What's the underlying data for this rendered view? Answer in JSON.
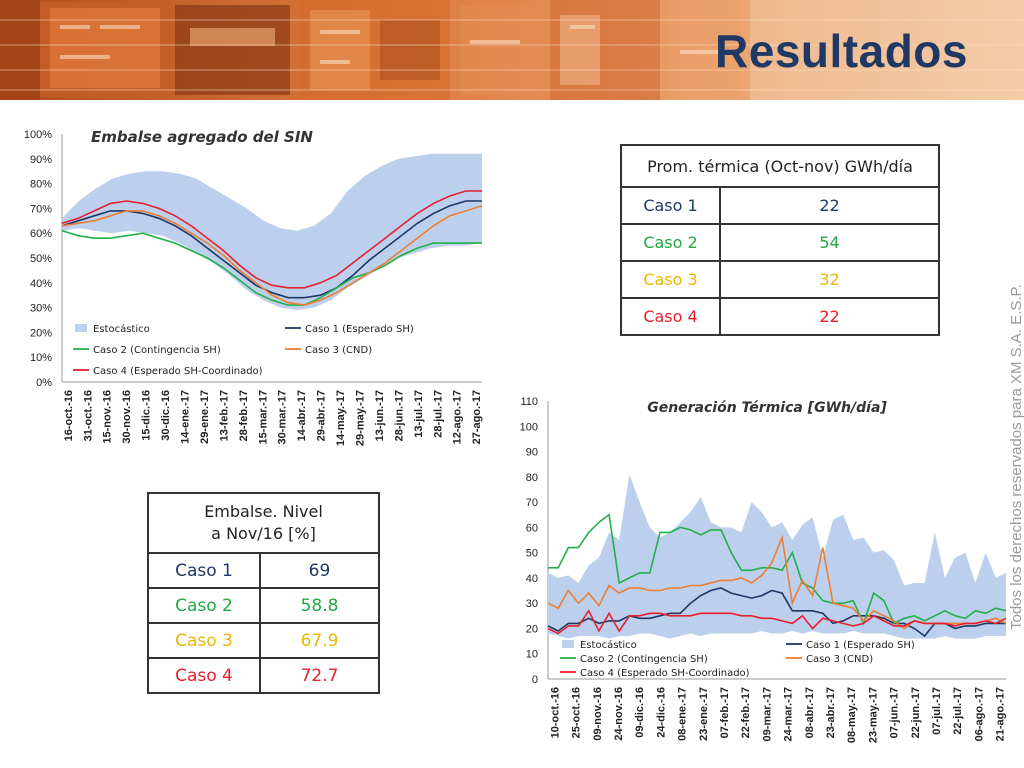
{
  "slide_title": "Resultados",
  "copyright": "Todos los derechos reservados para XM S.A. E.S.P.",
  "colors": {
    "stochastic_band": "#bcd0ee",
    "caso1": "#1f3864",
    "caso2": "#22b04a",
    "caso3": "#ed7d31",
    "caso4": "#e8202b",
    "caso3_text": "#e8b800"
  },
  "thermal_table": {
    "header": "Prom. térmica (Oct-nov) GWh/día",
    "rows": [
      {
        "label": "Caso 1",
        "value": "22"
      },
      {
        "label": "Caso 2",
        "value": "54"
      },
      {
        "label": "Caso 3",
        "value": "32"
      },
      {
        "label": "Caso 4",
        "value": "22"
      }
    ]
  },
  "level_table": {
    "header_line1": "Embalse. Nivel",
    "header_line2": "a Nov/16 [%]",
    "rows": [
      {
        "label": "Caso 1",
        "value": "69"
      },
      {
        "label": "Caso 2",
        "value": "58.8"
      },
      {
        "label": "Caso 3",
        "value": "67.9"
      },
      {
        "label": "Caso 4",
        "value": "72.7"
      }
    ]
  },
  "chart_data": [
    {
      "type": "area",
      "title": "Embalse agregado del SIN",
      "ylim": [
        0,
        100
      ],
      "yticks": [
        "0%",
        "10%",
        "20%",
        "30%",
        "40%",
        "50%",
        "60%",
        "70%",
        "80%",
        "90%",
        "100%"
      ],
      "x_tick_labels": [
        "16-oct.-16",
        "31-oct.-16",
        "15-nov.-16",
        "30-nov.-16",
        "15-dic.-16",
        "30-dic.-16",
        "14-ene.-17",
        "29-ene.-17",
        "13-feb.-17",
        "28-feb.-17",
        "15-mar.-17",
        "30-mar.-17",
        "14-abr.-17",
        "29-abr.-17",
        "14-may.-17",
        "29-may.-17",
        "13-jun.-17",
        "28-jun.-17",
        "13-jul.-17",
        "28-jul.-17",
        "12-ago.-17",
        "27-ago.-17"
      ],
      "legend": [
        "Estocástico",
        "Caso 1 (Esperado SH)",
        "Caso 2 (Contingencia SH)",
        "Caso 3 (CND)",
        "Caso 4 (Esperado SH-Coordinado)"
      ],
      "band": {
        "name": "Estocástico",
        "upper": [
          66,
          73,
          78,
          82,
          84,
          85,
          85,
          84,
          82,
          78,
          74,
          70,
          65,
          62,
          61,
          63,
          68,
          77,
          83,
          87,
          90,
          91,
          92,
          92,
          92,
          92
        ],
        "lower": [
          61,
          62,
          61,
          60,
          61,
          60,
          59,
          56,
          52,
          48,
          43,
          37,
          33,
          30,
          29,
          30,
          33,
          38,
          42,
          46,
          50,
          52,
          54,
          55,
          55,
          56
        ]
      },
      "series": [
        {
          "name": "Caso 1 (Esperado SH)",
          "values": [
            63,
            65,
            67,
            69,
            69,
            68,
            66,
            63,
            59,
            54,
            49,
            44,
            39,
            36,
            34,
            34,
            35,
            38,
            43,
            49,
            54,
            59,
            64,
            68,
            71,
            73,
            73
          ]
        },
        {
          "name": "Caso 2 (Contingencia SH)",
          "values": [
            61,
            59,
            58,
            58,
            59,
            60,
            58,
            56,
            53,
            50,
            46,
            41,
            36,
            33,
            31,
            31,
            34,
            38,
            42,
            44,
            47,
            51,
            54,
            56,
            56,
            56,
            56
          ]
        },
        {
          "name": "Caso 3 (CND)",
          "values": [
            63,
            64,
            65,
            67,
            69,
            69,
            67,
            64,
            60,
            56,
            51,
            45,
            40,
            35,
            32,
            31,
            33,
            36,
            40,
            44,
            48,
            53,
            58,
            63,
            67,
            69,
            71
          ]
        },
        {
          "name": "Caso 4 (Esperado SH-Coordinado)",
          "values": [
            64,
            66,
            69,
            72,
            73,
            72,
            70,
            67,
            63,
            58,
            53,
            47,
            42,
            39,
            38,
            38,
            40,
            43,
            48,
            53,
            58,
            63,
            68,
            72,
            75,
            77,
            77
          ]
        }
      ]
    },
    {
      "type": "area",
      "title": "Generación Térmica [GWh/día]",
      "ylim": [
        0,
        110
      ],
      "yticks": [
        "0",
        "10",
        "20",
        "30",
        "40",
        "50",
        "60",
        "70",
        "80",
        "90",
        "100",
        "110"
      ],
      "x_tick_labels": [
        "10-oct.-16",
        "25-oct.-16",
        "09-nov.-16",
        "24-nov.-16",
        "09-dic.-16",
        "24-dic.-16",
        "08-ene.-17",
        "23-ene.-17",
        "07-feb.-17",
        "22-feb.-17",
        "09-mar.-17",
        "24-mar.-17",
        "08-abr.-17",
        "23-abr.-17",
        "08-may.-17",
        "23-may.-17",
        "07-jun.-17",
        "22-jun.-17",
        "07-jul.-17",
        "22-jul.-17",
        "06-ago.-17",
        "21-ago.-17"
      ],
      "legend": [
        "Estocástico",
        "Caso 1 (Esperado SH)",
        "Caso 2 (Contingencia SH)",
        "Caso 3 (CND)",
        "Caso 4 (Esperado SH-Coordinado)"
      ],
      "band": {
        "name": "Estocástico",
        "upper": [
          42,
          40,
          41,
          38,
          45,
          48,
          58,
          55,
          81,
          70,
          60,
          56,
          58,
          62,
          66,
          72,
          62,
          60,
          60,
          58,
          70,
          66,
          60,
          62,
          55,
          61,
          64,
          48,
          63,
          65,
          55,
          56,
          50,
          51,
          47,
          37,
          38,
          38,
          58,
          40,
          48,
          50,
          38,
          50,
          40,
          42
        ],
        "lower": [
          18,
          17,
          16,
          17,
          17,
          17,
          16,
          17,
          17,
          18,
          18,
          17,
          16,
          17,
          18,
          17,
          18,
          18,
          18,
          18,
          18,
          19,
          18,
          18,
          19,
          18,
          19,
          18,
          18,
          18,
          19,
          18,
          18,
          18,
          17,
          16,
          16,
          16,
          16,
          17,
          16,
          16,
          16,
          17,
          17,
          17
        ]
      },
      "series": [
        {
          "name": "Caso 1 (Esperado SH)",
          "values": [
            21,
            19,
            22,
            22,
            24,
            22,
            23,
            23,
            25,
            24,
            24,
            25,
            26,
            26,
            30,
            33,
            35,
            36,
            34,
            33,
            32,
            33,
            35,
            34,
            27,
            27,
            27,
            26,
            22,
            23,
            25,
            25,
            25,
            24,
            22,
            22,
            20,
            17,
            22,
            22,
            20,
            21,
            21,
            22,
            22,
            22
          ]
        },
        {
          "name": "Caso 2 (Contingencia SH)",
          "values": [
            44,
            44,
            52,
            52,
            58,
            62,
            65,
            38,
            40,
            42,
            42,
            58,
            58,
            60,
            59,
            57,
            59,
            59,
            50,
            43,
            43,
            44,
            44,
            43,
            50,
            38,
            36,
            31,
            30,
            30,
            31,
            22,
            34,
            31,
            22,
            24,
            25,
            23,
            25,
            27,
            25,
            24,
            27,
            26,
            28,
            27
          ]
        },
        {
          "name": "Caso 3 (CND)",
          "values": [
            30,
            28,
            35,
            30,
            34,
            29,
            37,
            34,
            36,
            36,
            35,
            35,
            36,
            36,
            37,
            37,
            38,
            39,
            39,
            40,
            38,
            41,
            46,
            56,
            30,
            39,
            33,
            52,
            30,
            29,
            28,
            23,
            27,
            25,
            23,
            20,
            23,
            22,
            22,
            22,
            22,
            22,
            22,
            23,
            24,
            22
          ]
        },
        {
          "name": "Caso 4 (Esperado SH-Coordinado)",
          "values": [
            20,
            18,
            21,
            21,
            27,
            19,
            26,
            19,
            25,
            25,
            26,
            26,
            25,
            25,
            25,
            26,
            26,
            26,
            26,
            25,
            25,
            24,
            24,
            23,
            22,
            25,
            20,
            24,
            23,
            22,
            21,
            22,
            25,
            23,
            21,
            21,
            23,
            22,
            22,
            22,
            21,
            22,
            22,
            23,
            22,
            24
          ]
        }
      ]
    }
  ]
}
